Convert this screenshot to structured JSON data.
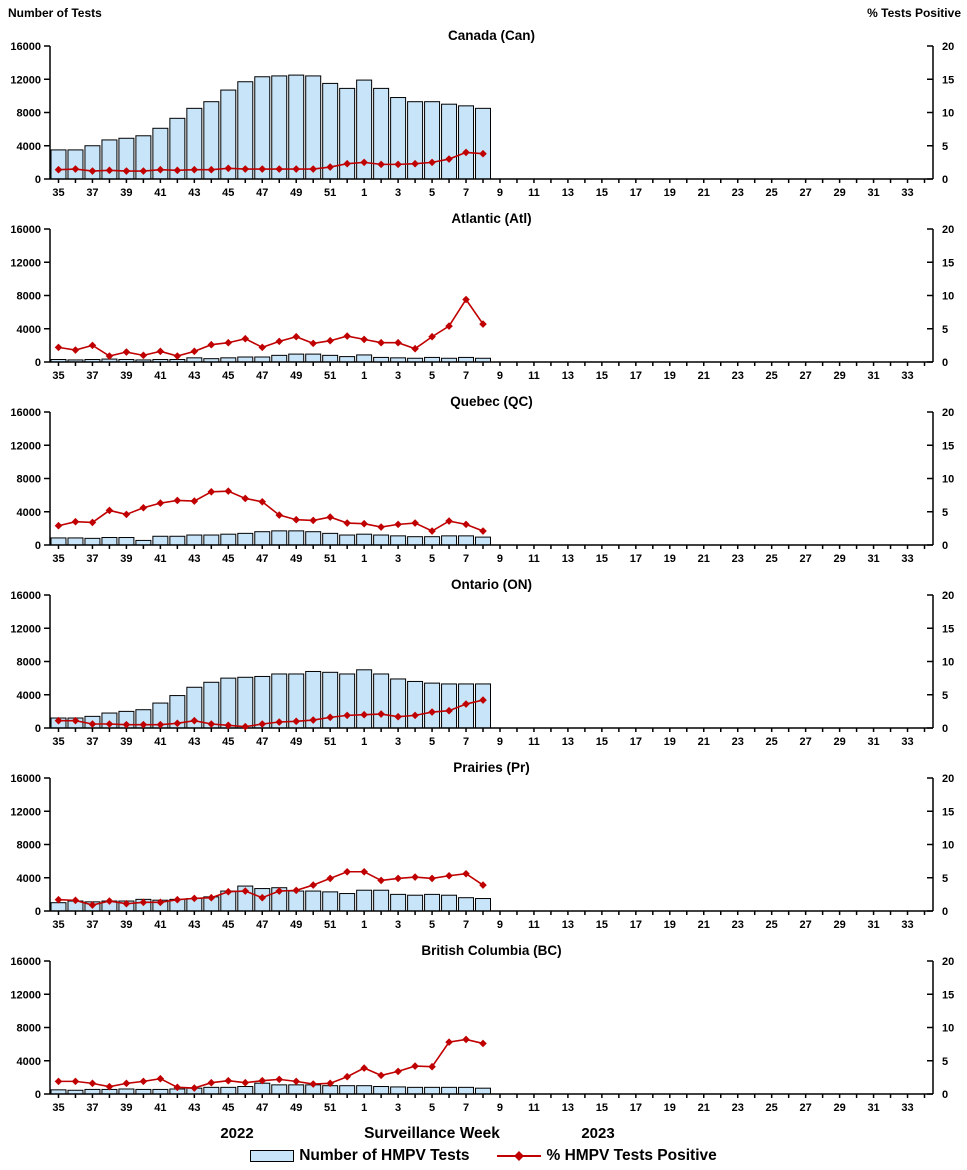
{
  "header": {
    "left_axis_title": "Number of Tests",
    "right_axis_title": "% Tests Positive"
  },
  "x_axis": {
    "title": "Surveillance Week",
    "year_left": "2022",
    "year_right": "2023",
    "week_sequence": [
      "35",
      "36",
      "37",
      "38",
      "39",
      "40",
      "41",
      "42",
      "43",
      "44",
      "45",
      "46",
      "47",
      "48",
      "49",
      "50",
      "51",
      "52",
      "1",
      "2",
      "3",
      "4",
      "5",
      "6",
      "7",
      "8",
      "9",
      "10",
      "11",
      "12",
      "13",
      "14",
      "15",
      "16",
      "17",
      "18",
      "19",
      "20",
      "21",
      "22",
      "23",
      "24",
      "25",
      "26",
      "27",
      "28",
      "29",
      "30",
      "31",
      "32",
      "33",
      "34"
    ],
    "labeled_weeks": [
      "35",
      "37",
      "39",
      "41",
      "43",
      "45",
      "47",
      "49",
      "51",
      "1",
      "3",
      "5",
      "7",
      "9",
      "11",
      "13",
      "15",
      "17",
      "19",
      "21",
      "23",
      "25",
      "27",
      "29",
      "31",
      "33"
    ]
  },
  "y_axis_left": {
    "ticks": [
      0,
      4000,
      8000,
      12000,
      16000
    ],
    "max": 16000
  },
  "y_axis_right": {
    "ticks": [
      0,
      5,
      10,
      15,
      20
    ],
    "max": 20
  },
  "legend": {
    "bars_label": "Number of HMPV Tests",
    "line_label": "% HMPV Tests Positive"
  },
  "colors": {
    "bar_fill": "#C8E4F8",
    "bar_border": "#000000",
    "line": "#C00000"
  },
  "chart_data": [
    {
      "type": "bar+line",
      "title": "Canada (Can)",
      "xlabel": "Surveillance Week",
      "ylabel_left": "Number of Tests",
      "ylabel_right": "% Tests Positive",
      "ylim_left": [
        0,
        16000
      ],
      "ylim_right": [
        0,
        20
      ],
      "categories": [
        "35",
        "36",
        "37",
        "38",
        "39",
        "40",
        "41",
        "42",
        "43",
        "44",
        "45",
        "46",
        "47",
        "48",
        "49",
        "50",
        "51",
        "52",
        "1",
        "2",
        "3",
        "4",
        "5",
        "6",
        "7",
        "8"
      ],
      "series": [
        {
          "name": "Number of HMPV Tests",
          "axis": "left",
          "type": "bar",
          "values": [
            3500,
            3500,
            4000,
            4700,
            4900,
            5200,
            6100,
            7300,
            8500,
            9300,
            10700,
            11700,
            12300,
            12400,
            12500,
            12400,
            11500,
            10900,
            11900,
            10900,
            9800,
            9300,
            9300,
            9000,
            8800,
            8500
          ]
        },
        {
          "name": "% HMPV Tests Positive",
          "axis": "right",
          "type": "line",
          "values": [
            1.4,
            1.5,
            1.2,
            1.3,
            1.2,
            1.2,
            1.4,
            1.3,
            1.4,
            1.4,
            1.6,
            1.5,
            1.5,
            1.5,
            1.5,
            1.5,
            1.8,
            2.3,
            2.5,
            2.2,
            2.2,
            2.3,
            2.5,
            3.0,
            4.0,
            3.8
          ]
        }
      ]
    },
    {
      "type": "bar+line",
      "title": "Atlantic (Atl)",
      "xlabel": "Surveillance Week",
      "ylabel_left": "Number of Tests",
      "ylabel_right": "% Tests Positive",
      "ylim_left": [
        0,
        16000
      ],
      "ylim_right": [
        0,
        20
      ],
      "categories": [
        "35",
        "36",
        "37",
        "38",
        "39",
        "40",
        "41",
        "42",
        "43",
        "44",
        "45",
        "46",
        "47",
        "48",
        "49",
        "50",
        "51",
        "52",
        "1",
        "2",
        "3",
        "4",
        "5",
        "6",
        "7",
        "8"
      ],
      "series": [
        {
          "name": "Number of HMPV Tests",
          "axis": "left",
          "type": "bar",
          "values": [
            300,
            250,
            300,
            350,
            300,
            250,
            300,
            300,
            500,
            400,
            500,
            600,
            600,
            800,
            950,
            950,
            800,
            650,
            850,
            550,
            500,
            450,
            550,
            450,
            550,
            450
          ]
        },
        {
          "name": "% HMPV Tests Positive",
          "axis": "right",
          "type": "line",
          "values": [
            2.2,
            1.8,
            2.5,
            0.9,
            1.5,
            1.0,
            1.6,
            0.9,
            1.6,
            2.6,
            2.9,
            3.5,
            2.2,
            3.1,
            3.8,
            2.8,
            3.2,
            3.9,
            3.4,
            2.9,
            2.9,
            2.0,
            3.8,
            5.4,
            9.4,
            5.7
          ]
        }
      ]
    },
    {
      "type": "bar+line",
      "title": "Quebec (QC)",
      "xlabel": "Surveillance Week",
      "ylabel_left": "Number of Tests",
      "ylabel_right": "% Tests Positive",
      "ylim_left": [
        0,
        16000
      ],
      "ylim_right": [
        0,
        20
      ],
      "categories": [
        "35",
        "36",
        "37",
        "38",
        "39",
        "40",
        "41",
        "42",
        "43",
        "44",
        "45",
        "46",
        "47",
        "48",
        "49",
        "50",
        "51",
        "52",
        "1",
        "2",
        "3",
        "4",
        "5",
        "6",
        "7",
        "8"
      ],
      "series": [
        {
          "name": "Number of HMPV Tests",
          "axis": "left",
          "type": "bar",
          "values": [
            850,
            850,
            800,
            900,
            900,
            550,
            1050,
            1050,
            1200,
            1200,
            1300,
            1400,
            1600,
            1700,
            1700,
            1600,
            1400,
            1200,
            1300,
            1200,
            1100,
            1000,
            1000,
            1100,
            1100,
            950
          ]
        },
        {
          "name": "% HMPV Tests Positive",
          "axis": "right",
          "type": "line",
          "values": [
            2.9,
            3.5,
            3.4,
            5.2,
            4.6,
            5.6,
            6.3,
            6.7,
            6.6,
            8.0,
            8.1,
            7.0,
            6.5,
            4.5,
            3.8,
            3.7,
            4.2,
            3.3,
            3.2,
            2.7,
            3.1,
            3.3,
            2.1,
            3.6,
            3.1,
            2.1
          ]
        }
      ]
    },
    {
      "type": "bar+line",
      "title": "Ontario (ON)",
      "xlabel": "Surveillance Week",
      "ylabel_left": "Number of Tests",
      "ylabel_right": "% Tests Positive",
      "ylim_left": [
        0,
        16000
      ],
      "ylim_right": [
        0,
        20
      ],
      "categories": [
        "35",
        "36",
        "37",
        "38",
        "39",
        "40",
        "41",
        "42",
        "43",
        "44",
        "45",
        "46",
        "47",
        "48",
        "49",
        "50",
        "51",
        "52",
        "1",
        "2",
        "3",
        "4",
        "5",
        "6",
        "7",
        "8"
      ],
      "series": [
        {
          "name": "Number of HMPV Tests",
          "axis": "left",
          "type": "bar",
          "values": [
            1200,
            1200,
            1400,
            1800,
            2000,
            2200,
            3000,
            3900,
            4900,
            5500,
            6000,
            6100,
            6200,
            6500,
            6500,
            6800,
            6700,
            6500,
            7000,
            6500,
            5900,
            5600,
            5400,
            5300,
            5300,
            5300
          ]
        },
        {
          "name": "% HMPV Tests Positive",
          "axis": "right",
          "type": "line",
          "values": [
            1.1,
            1.1,
            0.6,
            0.6,
            0.5,
            0.5,
            0.5,
            0.7,
            1.1,
            0.6,
            0.4,
            0.2,
            0.6,
            0.9,
            1.0,
            1.2,
            1.6,
            1.9,
            2.0,
            2.1,
            1.7,
            1.9,
            2.4,
            2.6,
            3.6,
            4.2
          ]
        }
      ]
    },
    {
      "type": "bar+line",
      "title": "Prairies (Pr)",
      "xlabel": "Surveillance Week",
      "ylabel_left": "Number of Tests",
      "ylabel_right": "% Tests Positive",
      "ylim_left": [
        0,
        16000
      ],
      "ylim_right": [
        0,
        20
      ],
      "categories": [
        "35",
        "36",
        "37",
        "38",
        "39",
        "40",
        "41",
        "42",
        "43",
        "44",
        "45",
        "46",
        "47",
        "48",
        "49",
        "50",
        "51",
        "52",
        "1",
        "2",
        "3",
        "4",
        "5",
        "6",
        "7",
        "8"
      ],
      "series": [
        {
          "name": "Number of HMPV Tests",
          "axis": "left",
          "type": "bar",
          "values": [
            1000,
            1200,
            1100,
            1200,
            1200,
            1400,
            1300,
            1400,
            1500,
            1700,
            2400,
            3000,
            2700,
            2800,
            2400,
            2400,
            2300,
            2100,
            2500,
            2500,
            2000,
            1900,
            2000,
            1900,
            1600,
            1500
          ]
        },
        {
          "name": "% HMPV Tests Positive",
          "axis": "right",
          "type": "line",
          "values": [
            1.7,
            1.6,
            0.9,
            1.5,
            1.1,
            1.3,
            1.3,
            1.7,
            1.9,
            2.0,
            2.9,
            3.0,
            2.0,
            3.0,
            3.1,
            3.9,
            4.9,
            5.9,
            5.9,
            4.6,
            4.9,
            5.1,
            4.9,
            5.3,
            5.6,
            3.9
          ]
        }
      ]
    },
    {
      "type": "bar+line",
      "title": "British Columbia (BC)",
      "xlabel": "Surveillance Week",
      "ylabel_left": "Number of Tests",
      "ylabel_right": "% Tests Positive",
      "ylim_left": [
        0,
        16000
      ],
      "ylim_right": [
        0,
        20
      ],
      "categories": [
        "35",
        "36",
        "37",
        "38",
        "39",
        "40",
        "41",
        "42",
        "43",
        "44",
        "45",
        "46",
        "47",
        "48",
        "49",
        "50",
        "51",
        "52",
        "1",
        "2",
        "3",
        "4",
        "5",
        "6",
        "7",
        "8"
      ],
      "series": [
        {
          "name": "Number of HMPV Tests",
          "axis": "left",
          "type": "bar",
          "values": [
            500,
            450,
            550,
            550,
            600,
            550,
            550,
            600,
            700,
            800,
            800,
            900,
            1300,
            1100,
            1100,
            1100,
            1000,
            1000,
            1000,
            900,
            850,
            800,
            800,
            800,
            800,
            700
          ]
        },
        {
          "name": "% HMPV Tests Positive",
          "axis": "right",
          "type": "line",
          "values": [
            1.9,
            1.9,
            1.6,
            1.1,
            1.6,
            1.9,
            2.3,
            1.0,
            0.9,
            1.7,
            2.0,
            1.7,
            2.0,
            2.2,
            1.9,
            1.5,
            1.6,
            2.6,
            3.9,
            2.8,
            3.4,
            4.2,
            4.1,
            7.8,
            8.2,
            7.6
          ]
        }
      ]
    }
  ]
}
